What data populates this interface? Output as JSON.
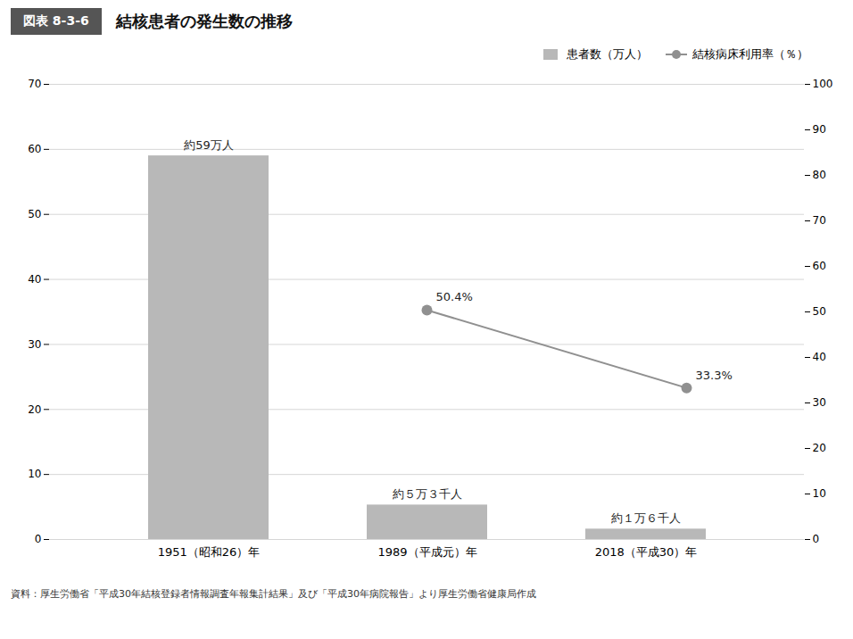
{
  "chart_data": {
    "type": "bar",
    "title": "結核患者の発生数の推移",
    "subtitle": "図表 8-3-6",
    "caption": "資料：厚生労働省「平成30年結核登録者情報調査年報集計結果」及び「平成30年病院報告」より厚生労働省健康局作成",
    "categories": [
      "1951（昭和26）年",
      "1989（平成元）年",
      "2018（平成30）年"
    ],
    "series": [
      {
        "name": "患者数（万人）",
        "type": "bar",
        "color": "#b8b8b8",
        "values": [
          59.0,
          5.3,
          1.6
        ],
        "value_labels": [
          "約59万人",
          "約５万３千人",
          "約１万６千人"
        ]
      },
      {
        "name": "結核病床利用率（％）",
        "type": "line",
        "axis": "y2",
        "color": "#909090",
        "marker": "o",
        "values": [
          null,
          50.4,
          33.3
        ],
        "value_labels": [
          null,
          "50.4%",
          "33.3%"
        ]
      }
    ],
    "ylim": [
      0,
      70
    ],
    "yticks": [
      0,
      10,
      20,
      30,
      40,
      50,
      60,
      70
    ],
    "y2lim": [
      0,
      100
    ],
    "y2ticks": [
      0,
      10,
      20,
      30,
      40,
      50,
      60,
      70,
      80,
      90,
      100
    ],
    "grid": true,
    "legend": "upper right",
    "data_labels": true
  }
}
